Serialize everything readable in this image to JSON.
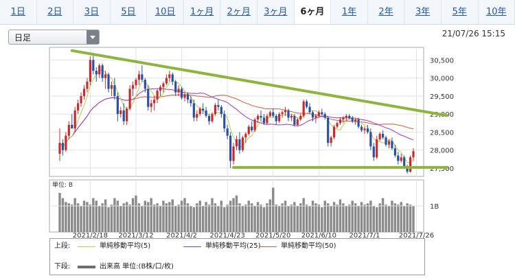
{
  "tabs": [
    {
      "label": "1日",
      "active": false
    },
    {
      "label": "2日",
      "active": false
    },
    {
      "label": "3日",
      "active": false
    },
    {
      "label": "5日",
      "active": false
    },
    {
      "label": "10日",
      "active": false
    },
    {
      "label": "1ヶ月",
      "active": false
    },
    {
      "label": "2ヶ月",
      "active": false
    },
    {
      "label": "3ヶ月",
      "active": false
    },
    {
      "label": "6ヶ月",
      "active": true
    },
    {
      "label": "1年",
      "active": false
    },
    {
      "label": "2年",
      "active": false
    },
    {
      "label": "3年",
      "active": false
    },
    {
      "label": "5年",
      "active": false
    },
    {
      "label": "10年",
      "active": false
    }
  ],
  "period_select": {
    "value": "日足"
  },
  "timestamp": "21/07/26 15:15",
  "chart_data": [
    {
      "type": "candlestick",
      "x_tick_labels": [
        "2021/2/18",
        "2021/3/12",
        "2021/4/2",
        "2021/4/23",
        "2021/5/20",
        "2021/6/10",
        "2021/7/1",
        "2021/7/26"
      ],
      "x_tick_index": [
        10,
        25,
        40,
        55,
        70,
        85,
        100,
        117
      ],
      "y_tick_labels": [
        "30,500",
        "30,000",
        "29,500",
        "29,000",
        "28,500",
        "28,000",
        "27,500"
      ],
      "ylim": [
        27270,
        30850
      ],
      "grid": true,
      "candles": [
        [
          27900,
          28600,
          27700,
          28200
        ],
        [
          28200,
          28300,
          27850,
          28000
        ],
        [
          28000,
          28500,
          27950,
          28400
        ],
        [
          28400,
          28800,
          28300,
          28700
        ],
        [
          28700,
          29000,
          28600,
          28600
        ],
        [
          28600,
          29200,
          28500,
          29100
        ],
        [
          29100,
          29400,
          29000,
          29300
        ],
        [
          29300,
          29600,
          29200,
          29500
        ],
        [
          29500,
          29800,
          29400,
          29700
        ],
        [
          29700,
          30000,
          29600,
          29900
        ],
        [
          29900,
          30600,
          29800,
          30500
        ],
        [
          30500,
          30700,
          30100,
          30200
        ],
        [
          30200,
          30300,
          29900,
          30100
        ],
        [
          30100,
          30400,
          30000,
          30350
        ],
        [
          30350,
          30400,
          29900,
          30000
        ],
        [
          30000,
          30200,
          29700,
          30100
        ],
        [
          30100,
          30150,
          29600,
          29700
        ],
        [
          29700,
          29900,
          29500,
          29800
        ],
        [
          29800,
          30000,
          29400,
          29500
        ],
        [
          29500,
          29600,
          28800,
          29000
        ],
        [
          29000,
          29200,
          28900,
          29100
        ],
        [
          29100,
          29300,
          28700,
          28800
        ],
        [
          28800,
          29200,
          28700,
          29150
        ],
        [
          29150,
          29800,
          29100,
          29700
        ],
        [
          29700,
          29900,
          29500,
          29800
        ],
        [
          29800,
          30000,
          29700,
          29950
        ],
        [
          29950,
          30200,
          29800,
          30100
        ],
        [
          30100,
          30350,
          29900,
          29950
        ],
        [
          29950,
          30000,
          29600,
          29700
        ],
        [
          29700,
          29800,
          29100,
          29200
        ],
        [
          29200,
          29400,
          29050,
          29300
        ],
        [
          29300,
          29500,
          29100,
          29400
        ],
        [
          29400,
          29700,
          29300,
          29650
        ],
        [
          29650,
          29800,
          29500,
          29750
        ],
        [
          29750,
          29900,
          29600,
          29850
        ],
        [
          29850,
          30100,
          29800,
          30000
        ],
        [
          30000,
          30200,
          29900,
          30100
        ],
        [
          30100,
          30150,
          29800,
          29900
        ],
        [
          29900,
          29950,
          29500,
          29600
        ],
        [
          29600,
          29800,
          29500,
          29700
        ],
        [
          29700,
          29750,
          29400,
          29450
        ],
        [
          29450,
          29600,
          29350,
          29550
        ],
        [
          29550,
          29600,
          29300,
          29400
        ],
        [
          29400,
          29500,
          29200,
          29300
        ],
        [
          29300,
          29400,
          28800,
          28900
        ],
        [
          28900,
          29100,
          28800,
          29000
        ],
        [
          29000,
          29200,
          28950,
          29150
        ],
        [
          29150,
          29300,
          29000,
          29100
        ],
        [
          29100,
          29200,
          28900,
          28950
        ],
        [
          28950,
          29000,
          28700,
          28800
        ],
        [
          28800,
          29050,
          28750,
          29000
        ],
        [
          29000,
          29300,
          28950,
          29250
        ],
        [
          29250,
          29400,
          29100,
          29200
        ],
        [
          29200,
          29250,
          28900,
          29000
        ],
        [
          29000,
          29100,
          28500,
          28600
        ],
        [
          28600,
          28700,
          28300,
          28400
        ],
        [
          28400,
          28500,
          27500,
          27700
        ],
        [
          27700,
          28200,
          27600,
          28100
        ],
        [
          28100,
          28400,
          28000,
          28300
        ],
        [
          28300,
          28500,
          27900,
          28000
        ],
        [
          28000,
          28400,
          27950,
          28350
        ],
        [
          28350,
          28500,
          28200,
          28450
        ],
        [
          28450,
          28700,
          28400,
          28650
        ],
        [
          28650,
          28800,
          28500,
          28550
        ],
        [
          28550,
          28900,
          28500,
          28850
        ],
        [
          28850,
          29000,
          28750,
          28950
        ],
        [
          28950,
          29100,
          28800,
          28900
        ],
        [
          28900,
          29000,
          28700,
          28750
        ],
        [
          28750,
          29000,
          28700,
          28950
        ],
        [
          28950,
          29100,
          28900,
          29050
        ],
        [
          29050,
          29150,
          28900,
          28950
        ],
        [
          28950,
          29000,
          28700,
          28800
        ],
        [
          28800,
          29050,
          28750,
          29000
        ],
        [
          29000,
          29100,
          28900,
          29050
        ],
        [
          29050,
          29200,
          28950,
          29100
        ],
        [
          29100,
          29150,
          28800,
          28900
        ],
        [
          28900,
          29000,
          28800,
          28950
        ],
        [
          28950,
          29000,
          28650,
          28700
        ],
        [
          28700,
          28900,
          28650,
          28850
        ],
        [
          28850,
          29000,
          28800,
          28950
        ],
        [
          28950,
          29400,
          28900,
          29350
        ],
        [
          29350,
          29400,
          29150,
          29200
        ],
        [
          29200,
          29300,
          29000,
          29050
        ],
        [
          29050,
          29100,
          28800,
          28900
        ],
        [
          28900,
          29000,
          28750,
          28950
        ],
        [
          28950,
          29100,
          28900,
          29050
        ],
        [
          29050,
          29150,
          28950,
          29000
        ],
        [
          29000,
          29050,
          28850,
          28900
        ],
        [
          28900,
          28950,
          28100,
          28200
        ],
        [
          28200,
          28400,
          28100,
          28350
        ],
        [
          28350,
          28700,
          28300,
          28650
        ],
        [
          28650,
          28800,
          28600,
          28750
        ],
        [
          28750,
          28900,
          28700,
          28850
        ],
        [
          28850,
          28950,
          28750,
          28900
        ],
        [
          28900,
          29000,
          28800,
          28950
        ],
        [
          28950,
          29000,
          28850,
          28900
        ],
        [
          28900,
          28950,
          28750,
          28800
        ],
        [
          28800,
          28900,
          28700,
          28850
        ],
        [
          28850,
          28900,
          28600,
          28650
        ],
        [
          28650,
          28700,
          28500,
          28550
        ],
        [
          28550,
          28650,
          28450,
          28600
        ],
        [
          28600,
          28700,
          28450,
          28500
        ],
        [
          28500,
          28600,
          28000,
          28100
        ],
        [
          28100,
          28200,
          27700,
          27800
        ],
        [
          27800,
          28400,
          27750,
          28300
        ],
        [
          28300,
          28500,
          28250,
          28450
        ],
        [
          28450,
          28550,
          28300,
          28350
        ],
        [
          28350,
          28400,
          28100,
          28150
        ],
        [
          28150,
          28300,
          28050,
          28250
        ],
        [
          28250,
          28350,
          28000,
          28050
        ],
        [
          28050,
          28150,
          27800,
          27850
        ],
        [
          27850,
          27950,
          27600,
          27700
        ],
        [
          27700,
          27900,
          27650,
          27800
        ],
        [
          27800,
          27850,
          27500,
          27550
        ],
        [
          27550,
          27600,
          27350,
          27400
        ],
        [
          27400,
          27850,
          27380,
          27800
        ],
        [
          27800,
          28050,
          27700,
          27970
        ]
      ],
      "trendlines": [
        {
          "from": [
            4,
            30760
          ],
          "to": [
            127,
            28960
          ],
          "color": "#8db53d"
        },
        {
          "from": [
            57,
            27520
          ],
          "to": [
            127,
            27520
          ],
          "color": "#8db53d"
        }
      ]
    },
    {
      "type": "bar",
      "title": "単位: B",
      "y_tick_label": "1B",
      "ylim": [
        0,
        2.0
      ],
      "values": [
        1.5,
        1.3,
        1.15,
        1.1,
        1.05,
        1.3,
        1.1,
        1.0,
        1.2,
        1.15,
        1.05,
        1.3,
        1.2,
        1.0,
        1.1,
        1.25,
        0.95,
        1.05,
        1.3,
        1.2,
        1.0,
        1.1,
        1.15,
        1.05,
        1.3,
        1.4,
        1.1,
        1.0,
        1.2,
        1.15,
        1.3,
        1.05,
        1.1,
        1.0,
        1.2,
        1.1,
        1.15,
        1.25,
        1.0,
        1.05,
        1.2,
        1.3,
        1.1,
        1.0,
        0.95,
        1.1,
        1.2,
        1.0,
        1.15,
        1.05,
        1.3,
        1.1,
        1.0,
        1.2,
        0.95,
        1.05,
        1.2,
        1.3,
        1.4,
        1.1,
        1.0,
        1.05,
        1.2,
        1.1,
        1.0,
        1.15,
        1.05,
        0.95,
        1.1,
        1.25,
        1.7,
        1.05,
        1.0,
        1.1,
        1.2,
        1.0,
        1.05,
        1.15,
        1.0,
        1.1,
        1.3,
        1.05,
        1.0,
        1.2,
        1.1,
        1.05,
        0.95,
        1.2,
        1.1,
        1.0,
        1.15,
        1.05,
        1.25,
        1.1,
        1.0,
        1.05,
        1.2,
        1.1,
        1.0,
        1.15,
        1.05,
        1.1,
        1.2,
        1.0,
        0.95,
        1.1,
        1.3,
        1.05,
        1.0,
        1.2,
        1.1,
        1.05,
        1.15,
        1.0,
        1.1,
        1.05,
        1.0
      ]
    }
  ],
  "legend": {
    "upper_label": "上段:",
    "lower_label": "下段:",
    "ma5": {
      "label": "単純移動平均(5)",
      "color": "#b5cf3f"
    },
    "ma25": {
      "label": "単純移動平均(25)",
      "color": "#9b33c7"
    },
    "ma50": {
      "label": "単純移動平均(50)",
      "color": "#d9583a"
    },
    "volume": {
      "label": "出来高 単位:(B株/口/枚)",
      "color": "#6e6e6e"
    }
  },
  "colors": {
    "up": "#cc2a2a",
    "down": "#2a4fa6",
    "grid": "#e2e2e2",
    "volume": "#8a8a8a"
  }
}
